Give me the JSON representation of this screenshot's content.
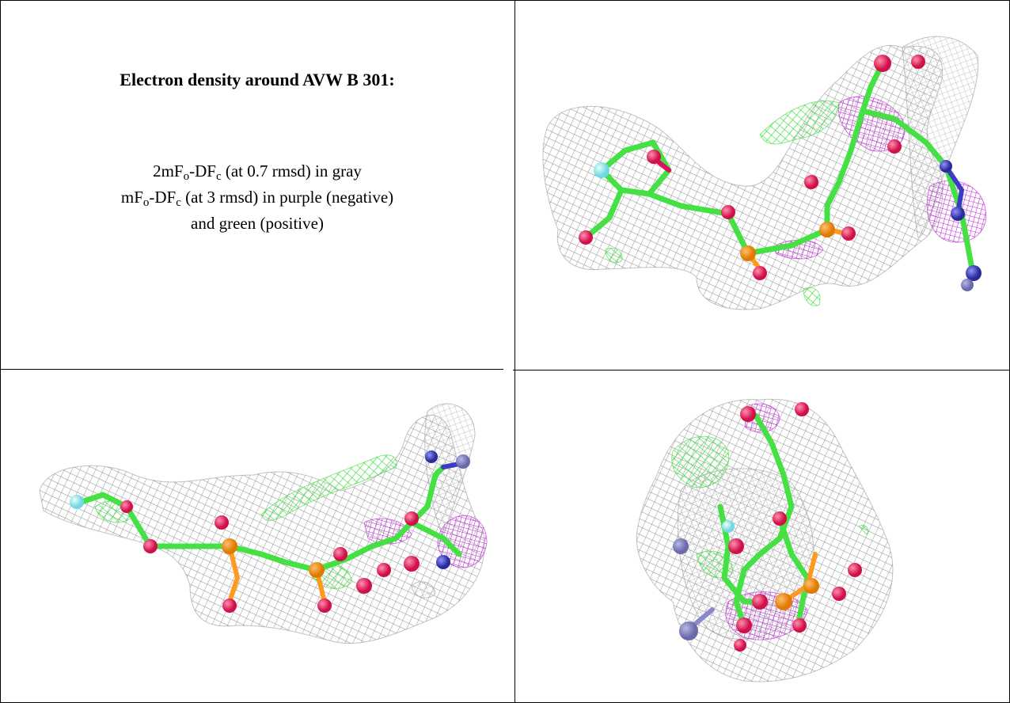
{
  "caption": {
    "title": "Electron density around AVW B 301:",
    "lines": [
      [
        {
          "text": "2mF"
        },
        {
          "text": "o",
          "style": "sub"
        },
        {
          "text": "-DF"
        },
        {
          "text": "c",
          "style": "sub"
        },
        {
          "text": " (at 0.7 rmsd) in gray"
        }
      ],
      [
        {
          "text": "mF"
        },
        {
          "text": "o",
          "style": "sub"
        },
        {
          "text": "-DF"
        },
        {
          "text": "c",
          "style": "sub"
        },
        {
          "text": " (at 3 rmsd) in purple (negative)"
        }
      ],
      [
        {
          "text": "and green (positive)"
        }
      ]
    ]
  }
}
